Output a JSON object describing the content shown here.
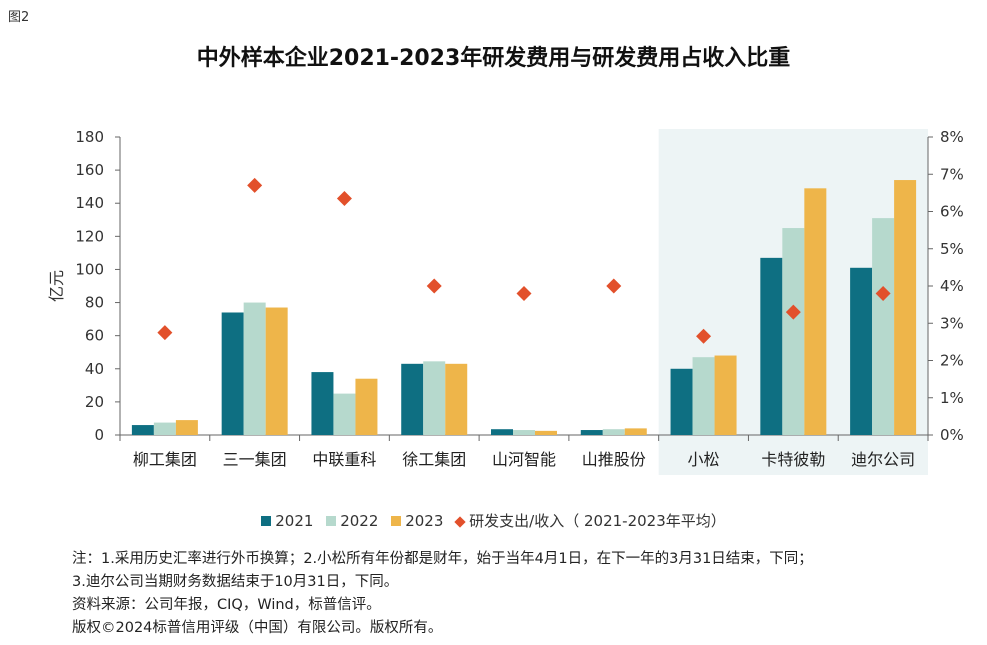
{
  "figure_label": "图2",
  "chart_data": {
    "type": "bar",
    "title": "中外样本企业2021-2023年研发费用与研发费用占收入比重",
    "ylabel": "亿元",
    "ylim": [
      0,
      180
    ],
    "yticks": [
      "0",
      "20",
      "40",
      "60",
      "80",
      "100",
      "120",
      "140",
      "160",
      "180"
    ],
    "y2lim": [
      0,
      8
    ],
    "y2ticks": [
      "0%",
      "1%",
      "2%",
      "3%",
      "4%",
      "5%",
      "6%",
      "7%",
      "8%"
    ],
    "categories": [
      "柳工集团",
      "三一集团",
      "中联重科",
      "徐工集团",
      "山河智能",
      "山推股份",
      "小松",
      "卡特彼勒",
      "迪尔公司"
    ],
    "highlighted_categories": [
      "小松",
      "卡特彼勒",
      "迪尔公司"
    ],
    "series": [
      {
        "name": "2021",
        "color": "#0e6f82",
        "values": [
          6,
          74,
          38,
          43,
          3.5,
          3,
          40,
          107,
          101
        ]
      },
      {
        "name": "2022",
        "color": "#b6d9cd",
        "values": [
          7.5,
          80,
          25,
          44.5,
          3,
          3.5,
          47,
          125,
          131
        ]
      },
      {
        "name": "2023",
        "color": "#eeb54a",
        "values": [
          9,
          77,
          34,
          43,
          2.5,
          4,
          48,
          149,
          154
        ]
      }
    ],
    "ratio_series": {
      "name": "研发支出/收入（2021-2023年平均）",
      "color": "#e2502b",
      "values": [
        2.75,
        6.7,
        6.35,
        4.0,
        3.8,
        4.0,
        2.65,
        3.3,
        3.8
      ]
    },
    "legend_position": "bottom",
    "grid": false
  },
  "legend": {
    "items": [
      "2021",
      "2022",
      "2023"
    ],
    "ratio_label": "研发支出/收入（ 2021-2023年平均）"
  },
  "notes": [
    "注：1.采用历史汇率进行外币换算；2.小松所有年份都是财年，始于当年4月1日，在下一年的3月31日结束，下同；",
    "3.迪尔公司当期财务数据结束于10月31日，下同。",
    "资料来源：公司年报，CIQ，Wind，标普信评。",
    "版权©2024标普信用评级（中国）有限公司。版权所有。"
  ]
}
